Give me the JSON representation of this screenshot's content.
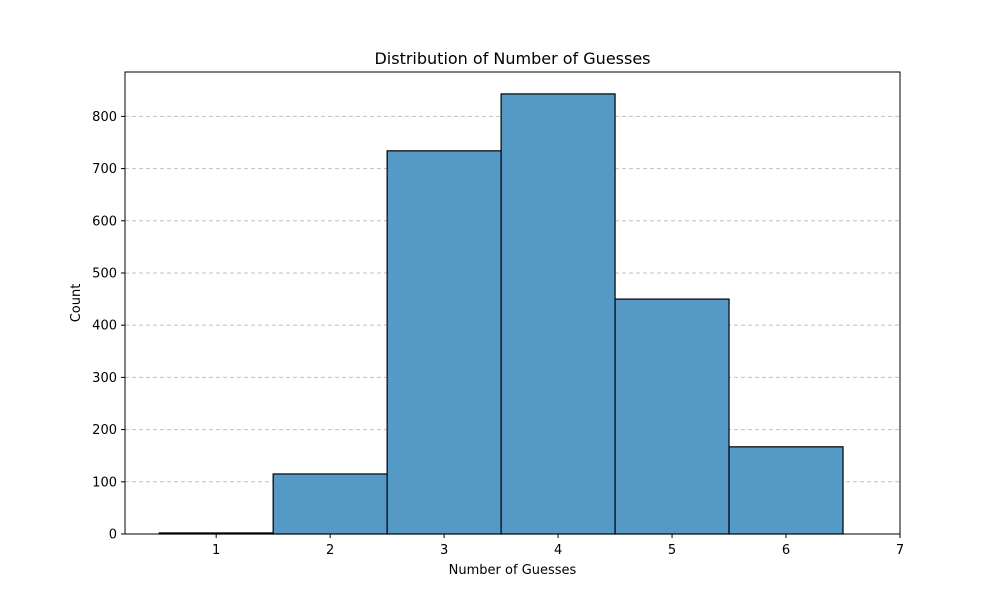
{
  "chart_data": {
    "type": "bar",
    "title": "Distribution of Number of Guesses",
    "xlabel": "Number of Guesses",
    "ylabel": "Count",
    "bins": [
      {
        "center": 1,
        "start": 0.5,
        "end": 1.5,
        "value": 2
      },
      {
        "center": 2,
        "start": 1.5,
        "end": 2.5,
        "value": 115
      },
      {
        "center": 3,
        "start": 2.5,
        "end": 3.5,
        "value": 734
      },
      {
        "center": 4,
        "start": 3.5,
        "end": 4.5,
        "value": 843
      },
      {
        "center": 5,
        "start": 4.5,
        "end": 5.5,
        "value": 450
      },
      {
        "center": 6,
        "start": 5.5,
        "end": 6.5,
        "value": 167
      }
    ],
    "xlim": [
      0.2,
      7
    ],
    "ylim": [
      0,
      885
    ],
    "xticks": [
      "1",
      "2",
      "3",
      "4",
      "5",
      "6",
      "7"
    ],
    "yticks": [
      "0",
      "100",
      "200",
      "300",
      "400",
      "500",
      "600",
      "700",
      "800"
    ],
    "grid": "y-dashed",
    "bar_color": "#5599c7",
    "edge_color": "#000000",
    "grid_color": "#c0c0c0"
  }
}
